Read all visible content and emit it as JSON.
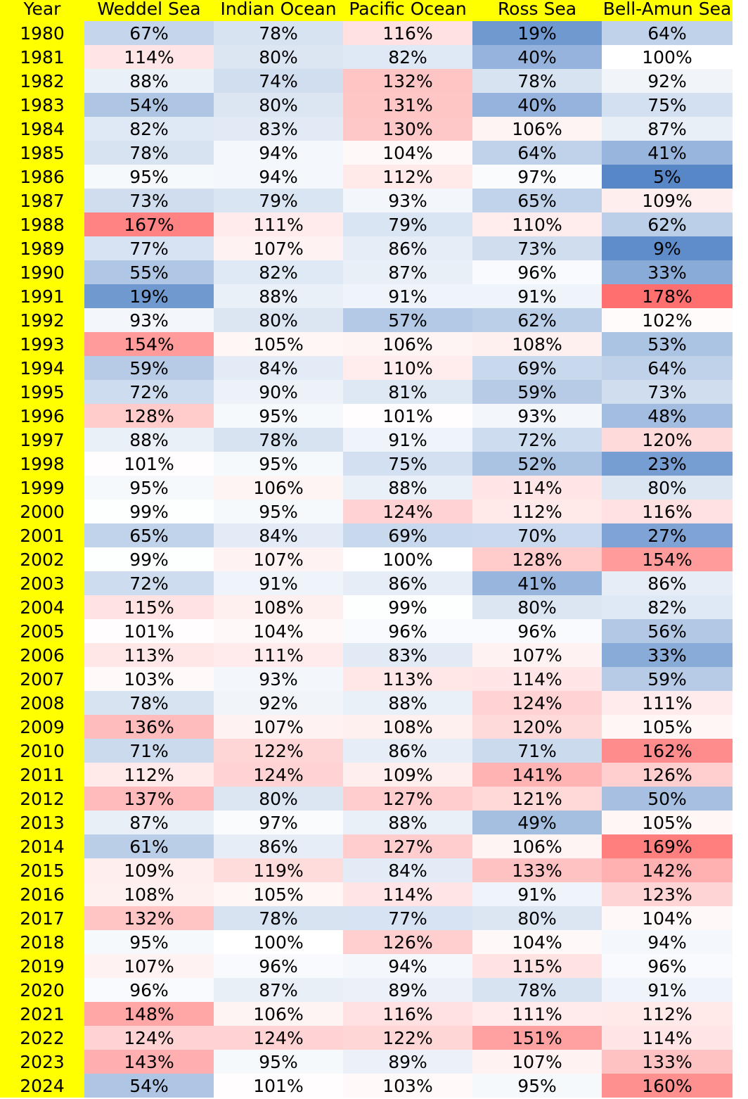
{
  "chart_data": {
    "type": "table",
    "header_color": "#ffff00",
    "color_scale": {
      "low": "#4f81c5",
      "mid": "#ffffff",
      "high": "#ff6b6b",
      "midpoint_value": 100,
      "domain": [
        0,
        180
      ]
    },
    "columns": [
      "Year",
      "Weddel Sea",
      "Indian Ocean",
      "Pacific Ocean",
      "Ross Sea",
      "Bell-Amun Sea"
    ],
    "rows": [
      [
        "1980",
        "67%",
        "78%",
        "116%",
        "19%",
        "64%"
      ],
      [
        "1981",
        "114%",
        "80%",
        "82%",
        "40%",
        "100%"
      ],
      [
        "1982",
        "88%",
        "74%",
        "132%",
        "78%",
        "92%"
      ],
      [
        "1983",
        "54%",
        "80%",
        "131%",
        "40%",
        "75%"
      ],
      [
        "1984",
        "82%",
        "83%",
        "130%",
        "106%",
        "87%"
      ],
      [
        "1985",
        "78%",
        "94%",
        "104%",
        "64%",
        "41%"
      ],
      [
        "1986",
        "95%",
        "94%",
        "112%",
        "97%",
        "5%"
      ],
      [
        "1987",
        "73%",
        "79%",
        "93%",
        "65%",
        "109%"
      ],
      [
        "1988",
        "167%",
        "111%",
        "79%",
        "110%",
        "62%"
      ],
      [
        "1989",
        "77%",
        "107%",
        "86%",
        "73%",
        "9%"
      ],
      [
        "1990",
        "55%",
        "82%",
        "87%",
        "96%",
        "33%"
      ],
      [
        "1991",
        "19%",
        "88%",
        "91%",
        "91%",
        "178%"
      ],
      [
        "1992",
        "93%",
        "80%",
        "57%",
        "62%",
        "102%"
      ],
      [
        "1993",
        "154%",
        "105%",
        "106%",
        "108%",
        "53%"
      ],
      [
        "1994",
        "59%",
        "84%",
        "110%",
        "69%",
        "64%"
      ],
      [
        "1995",
        "72%",
        "90%",
        "81%",
        "59%",
        "73%"
      ],
      [
        "1996",
        "128%",
        "95%",
        "101%",
        "93%",
        "48%"
      ],
      [
        "1997",
        "88%",
        "78%",
        "91%",
        "72%",
        "120%"
      ],
      [
        "1998",
        "101%",
        "95%",
        "75%",
        "52%",
        "23%"
      ],
      [
        "1999",
        "95%",
        "106%",
        "88%",
        "114%",
        "80%"
      ],
      [
        "2000",
        "99%",
        "95%",
        "124%",
        "112%",
        "116%"
      ],
      [
        "2001",
        "65%",
        "84%",
        "69%",
        "70%",
        "27%"
      ],
      [
        "2002",
        "99%",
        "107%",
        "100%",
        "128%",
        "154%"
      ],
      [
        "2003",
        "72%",
        "91%",
        "86%",
        "41%",
        "86%"
      ],
      [
        "2004",
        "115%",
        "108%",
        "99%",
        "80%",
        "82%"
      ],
      [
        "2005",
        "101%",
        "104%",
        "96%",
        "96%",
        "56%"
      ],
      [
        "2006",
        "113%",
        "111%",
        "83%",
        "107%",
        "33%"
      ],
      [
        "2007",
        "103%",
        "93%",
        "113%",
        "114%",
        "59%"
      ],
      [
        "2008",
        "78%",
        "92%",
        "88%",
        "124%",
        "111%"
      ],
      [
        "2009",
        "136%",
        "107%",
        "108%",
        "120%",
        "105%"
      ],
      [
        "2010",
        "71%",
        "122%",
        "86%",
        "71%",
        "162%"
      ],
      [
        "2011",
        "112%",
        "124%",
        "109%",
        "141%",
        "126%"
      ],
      [
        "2012",
        "137%",
        "80%",
        "127%",
        "121%",
        "50%"
      ],
      [
        "2013",
        "87%",
        "97%",
        "88%",
        "49%",
        "105%"
      ],
      [
        "2014",
        "61%",
        "86%",
        "127%",
        "106%",
        "169%"
      ],
      [
        "2015",
        "109%",
        "119%",
        "84%",
        "133%",
        "142%"
      ],
      [
        "2016",
        "108%",
        "105%",
        "114%",
        "91%",
        "123%"
      ],
      [
        "2017",
        "132%",
        "78%",
        "77%",
        "80%",
        "104%"
      ],
      [
        "2018",
        "95%",
        "100%",
        "126%",
        "104%",
        "94%"
      ],
      [
        "2019",
        "107%",
        "96%",
        "94%",
        "115%",
        "96%"
      ],
      [
        "2020",
        "96%",
        "87%",
        "89%",
        "78%",
        "91%"
      ],
      [
        "2021",
        "148%",
        "106%",
        "116%",
        "111%",
        "112%"
      ],
      [
        "2022",
        "124%",
        "124%",
        "122%",
        "151%",
        "114%"
      ],
      [
        "2023",
        "143%",
        "95%",
        "89%",
        "107%",
        "133%"
      ],
      [
        "2024",
        "54%",
        "101%",
        "103%",
        "95%",
        "160%"
      ]
    ]
  }
}
